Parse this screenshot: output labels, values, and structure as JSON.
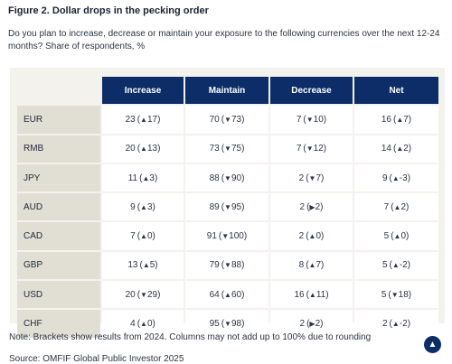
{
  "figure": {
    "title": "Figure 2. Dollar drops in the pecking order",
    "question": "Do you plan to increase, decrease or maintain your exposure to the following currencies over the next 12-24 months? Share of respondents, %",
    "note": "Note: Brackets show results from 2024. Columns may not add up to 100% due to rounding",
    "source": "Source: OMFIF Global Public Investor 2025"
  },
  "icons": {
    "up": "▲",
    "down": "▼",
    "right": "▶",
    "scroll_top": "▲"
  },
  "colors": {
    "header_bg": "#0c2d68",
    "panel_bg": "#f3f2ed",
    "rowhead_bg": "#e1ded4"
  },
  "chart_data": {
    "type": "table",
    "columns": [
      "Increase",
      "Maintain",
      "Decrease",
      "Net"
    ],
    "rows": [
      {
        "label": "EUR",
        "cells": [
          {
            "value": "23",
            "dir": "up",
            "prev": "17"
          },
          {
            "value": "70",
            "dir": "down",
            "prev": "73"
          },
          {
            "value": "7",
            "dir": "down",
            "prev": "10"
          },
          {
            "value": "16",
            "dir": "up",
            "prev": "7"
          }
        ]
      },
      {
        "label": "RMB",
        "cells": [
          {
            "value": "20",
            "dir": "up",
            "prev": "13"
          },
          {
            "value": "73",
            "dir": "down",
            "prev": "75"
          },
          {
            "value": "7",
            "dir": "down",
            "prev": "12"
          },
          {
            "value": "14",
            "dir": "up",
            "prev": "2"
          }
        ]
      },
      {
        "label": "JPY",
        "cells": [
          {
            "value": "11",
            "dir": "up",
            "prev": "3"
          },
          {
            "value": "88",
            "dir": "down",
            "prev": "90"
          },
          {
            "value": "2",
            "dir": "down",
            "prev": "7"
          },
          {
            "value": "9",
            "dir": "up",
            "prev": "-3"
          }
        ]
      },
      {
        "label": "AUD",
        "cells": [
          {
            "value": "9",
            "dir": "up",
            "prev": "3"
          },
          {
            "value": "89",
            "dir": "down",
            "prev": "95"
          },
          {
            "value": "2",
            "dir": "right",
            "prev": "2"
          },
          {
            "value": "7",
            "dir": "up",
            "prev": "2"
          }
        ]
      },
      {
        "label": "CAD",
        "cells": [
          {
            "value": "7",
            "dir": "up",
            "prev": "0"
          },
          {
            "value": "91",
            "dir": "down",
            "prev": "100"
          },
          {
            "value": "2",
            "dir": "up",
            "prev": "0"
          },
          {
            "value": "5",
            "dir": "up",
            "prev": "0"
          }
        ]
      },
      {
        "label": "GBP",
        "cells": [
          {
            "value": "13",
            "dir": "up",
            "prev": "5"
          },
          {
            "value": "79",
            "dir": "down",
            "prev": "88"
          },
          {
            "value": "8",
            "dir": "up",
            "prev": "7"
          },
          {
            "value": "5",
            "dir": "up",
            "prev": "-2"
          }
        ]
      },
      {
        "label": "USD",
        "cells": [
          {
            "value": "20",
            "dir": "down",
            "prev": "29"
          },
          {
            "value": "64",
            "dir": "up",
            "prev": "60"
          },
          {
            "value": "16",
            "dir": "up",
            "prev": "11"
          },
          {
            "value": "5",
            "dir": "down",
            "prev": "18"
          }
        ]
      },
      {
        "label": "CHF",
        "cells": [
          {
            "value": "4",
            "dir": "up",
            "prev": "0"
          },
          {
            "value": "95",
            "dir": "down",
            "prev": "98"
          },
          {
            "value": "2",
            "dir": "right",
            "prev": "2"
          },
          {
            "value": "2",
            "dir": "up",
            "prev": "-2"
          }
        ]
      }
    ]
  }
}
